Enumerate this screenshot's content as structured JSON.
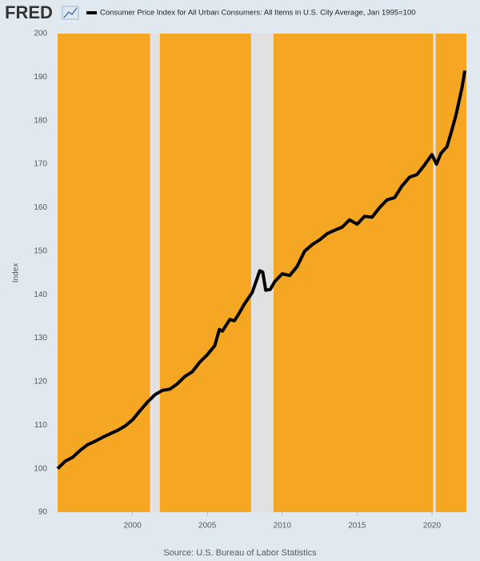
{
  "logo": "FRED",
  "chart_data": {
    "type": "line",
    "title": "Consumer Price Index for All Urban Consumers: All Items in U.S. City Average, Jan 1995=100",
    "ylabel": "Index",
    "source": "Source: U.S. Bureau of Labor Statistics",
    "x": [
      1995.0,
      1995.5,
      1996.0,
      1996.5,
      1997.0,
      1997.5,
      1998.0,
      1998.5,
      1999.0,
      1999.5,
      2000.0,
      2000.5,
      2001.0,
      2001.5,
      2002.0,
      2002.5,
      2003.0,
      2003.5,
      2004.0,
      2004.5,
      2005.0,
      2005.5,
      2005.8,
      2006.0,
      2006.5,
      2006.8,
      2007.0,
      2007.5,
      2008.0,
      2008.5,
      2008.7,
      2008.9,
      2009.2,
      2009.5,
      2010.0,
      2010.5,
      2011.0,
      2011.5,
      2012.0,
      2012.5,
      2013.0,
      2013.5,
      2014.0,
      2014.5,
      2015.0,
      2015.5,
      2016.0,
      2016.5,
      2017.0,
      2017.5,
      2018.0,
      2018.5,
      2019.0,
      2019.5,
      2020.0,
      2020.3,
      2020.6,
      2021.0,
      2021.3,
      2021.6,
      2022.0,
      2022.2
    ],
    "series": [
      {
        "name": "Consumer Price Index for All Urban Consumers: All Items in U.S. City Average, Jan 1995=100",
        "color": "#000000",
        "values": [
          100,
          101.7,
          102.6,
          104.2,
          105.5,
          106.3,
          107.2,
          108.0,
          108.8,
          109.8,
          111.2,
          113.3,
          115.3,
          117.0,
          118.0,
          118.3,
          119.5,
          121.2,
          122.3,
          124.5,
          126.2,
          128.3,
          132.0,
          131.6,
          134.3,
          134.0,
          135.0,
          138.0,
          140.5,
          145.5,
          145.2,
          141.0,
          141.2,
          143.0,
          144.8,
          144.4,
          146.5,
          150.0,
          151.5,
          152.6,
          154.0,
          154.8,
          155.5,
          157.2,
          156.2,
          158.0,
          157.8,
          160.0,
          161.8,
          162.3,
          165.0,
          167.0,
          167.6,
          169.8,
          172.2,
          170.0,
          172.5,
          174.0,
          177.5,
          181.2,
          187.5,
          191.5
        ]
      }
    ],
    "recessions": [
      {
        "start": 2001.17,
        "end": 2001.83
      },
      {
        "start": 2007.92,
        "end": 2009.42
      },
      {
        "start": 2020.08,
        "end": 2020.25
      }
    ],
    "recession_color": "#e1e1e1",
    "plot_color": "#f5a623",
    "xlim": [
      1995.0,
      2022.3
    ],
    "xticks": [
      2000,
      2005,
      2010,
      2015,
      2020
    ],
    "ylim": [
      90,
      200
    ],
    "yticks": [
      90,
      100,
      110,
      120,
      130,
      140,
      150,
      160,
      170,
      180,
      190,
      200
    ],
    "grid": false,
    "legend_position": "top-left"
  }
}
